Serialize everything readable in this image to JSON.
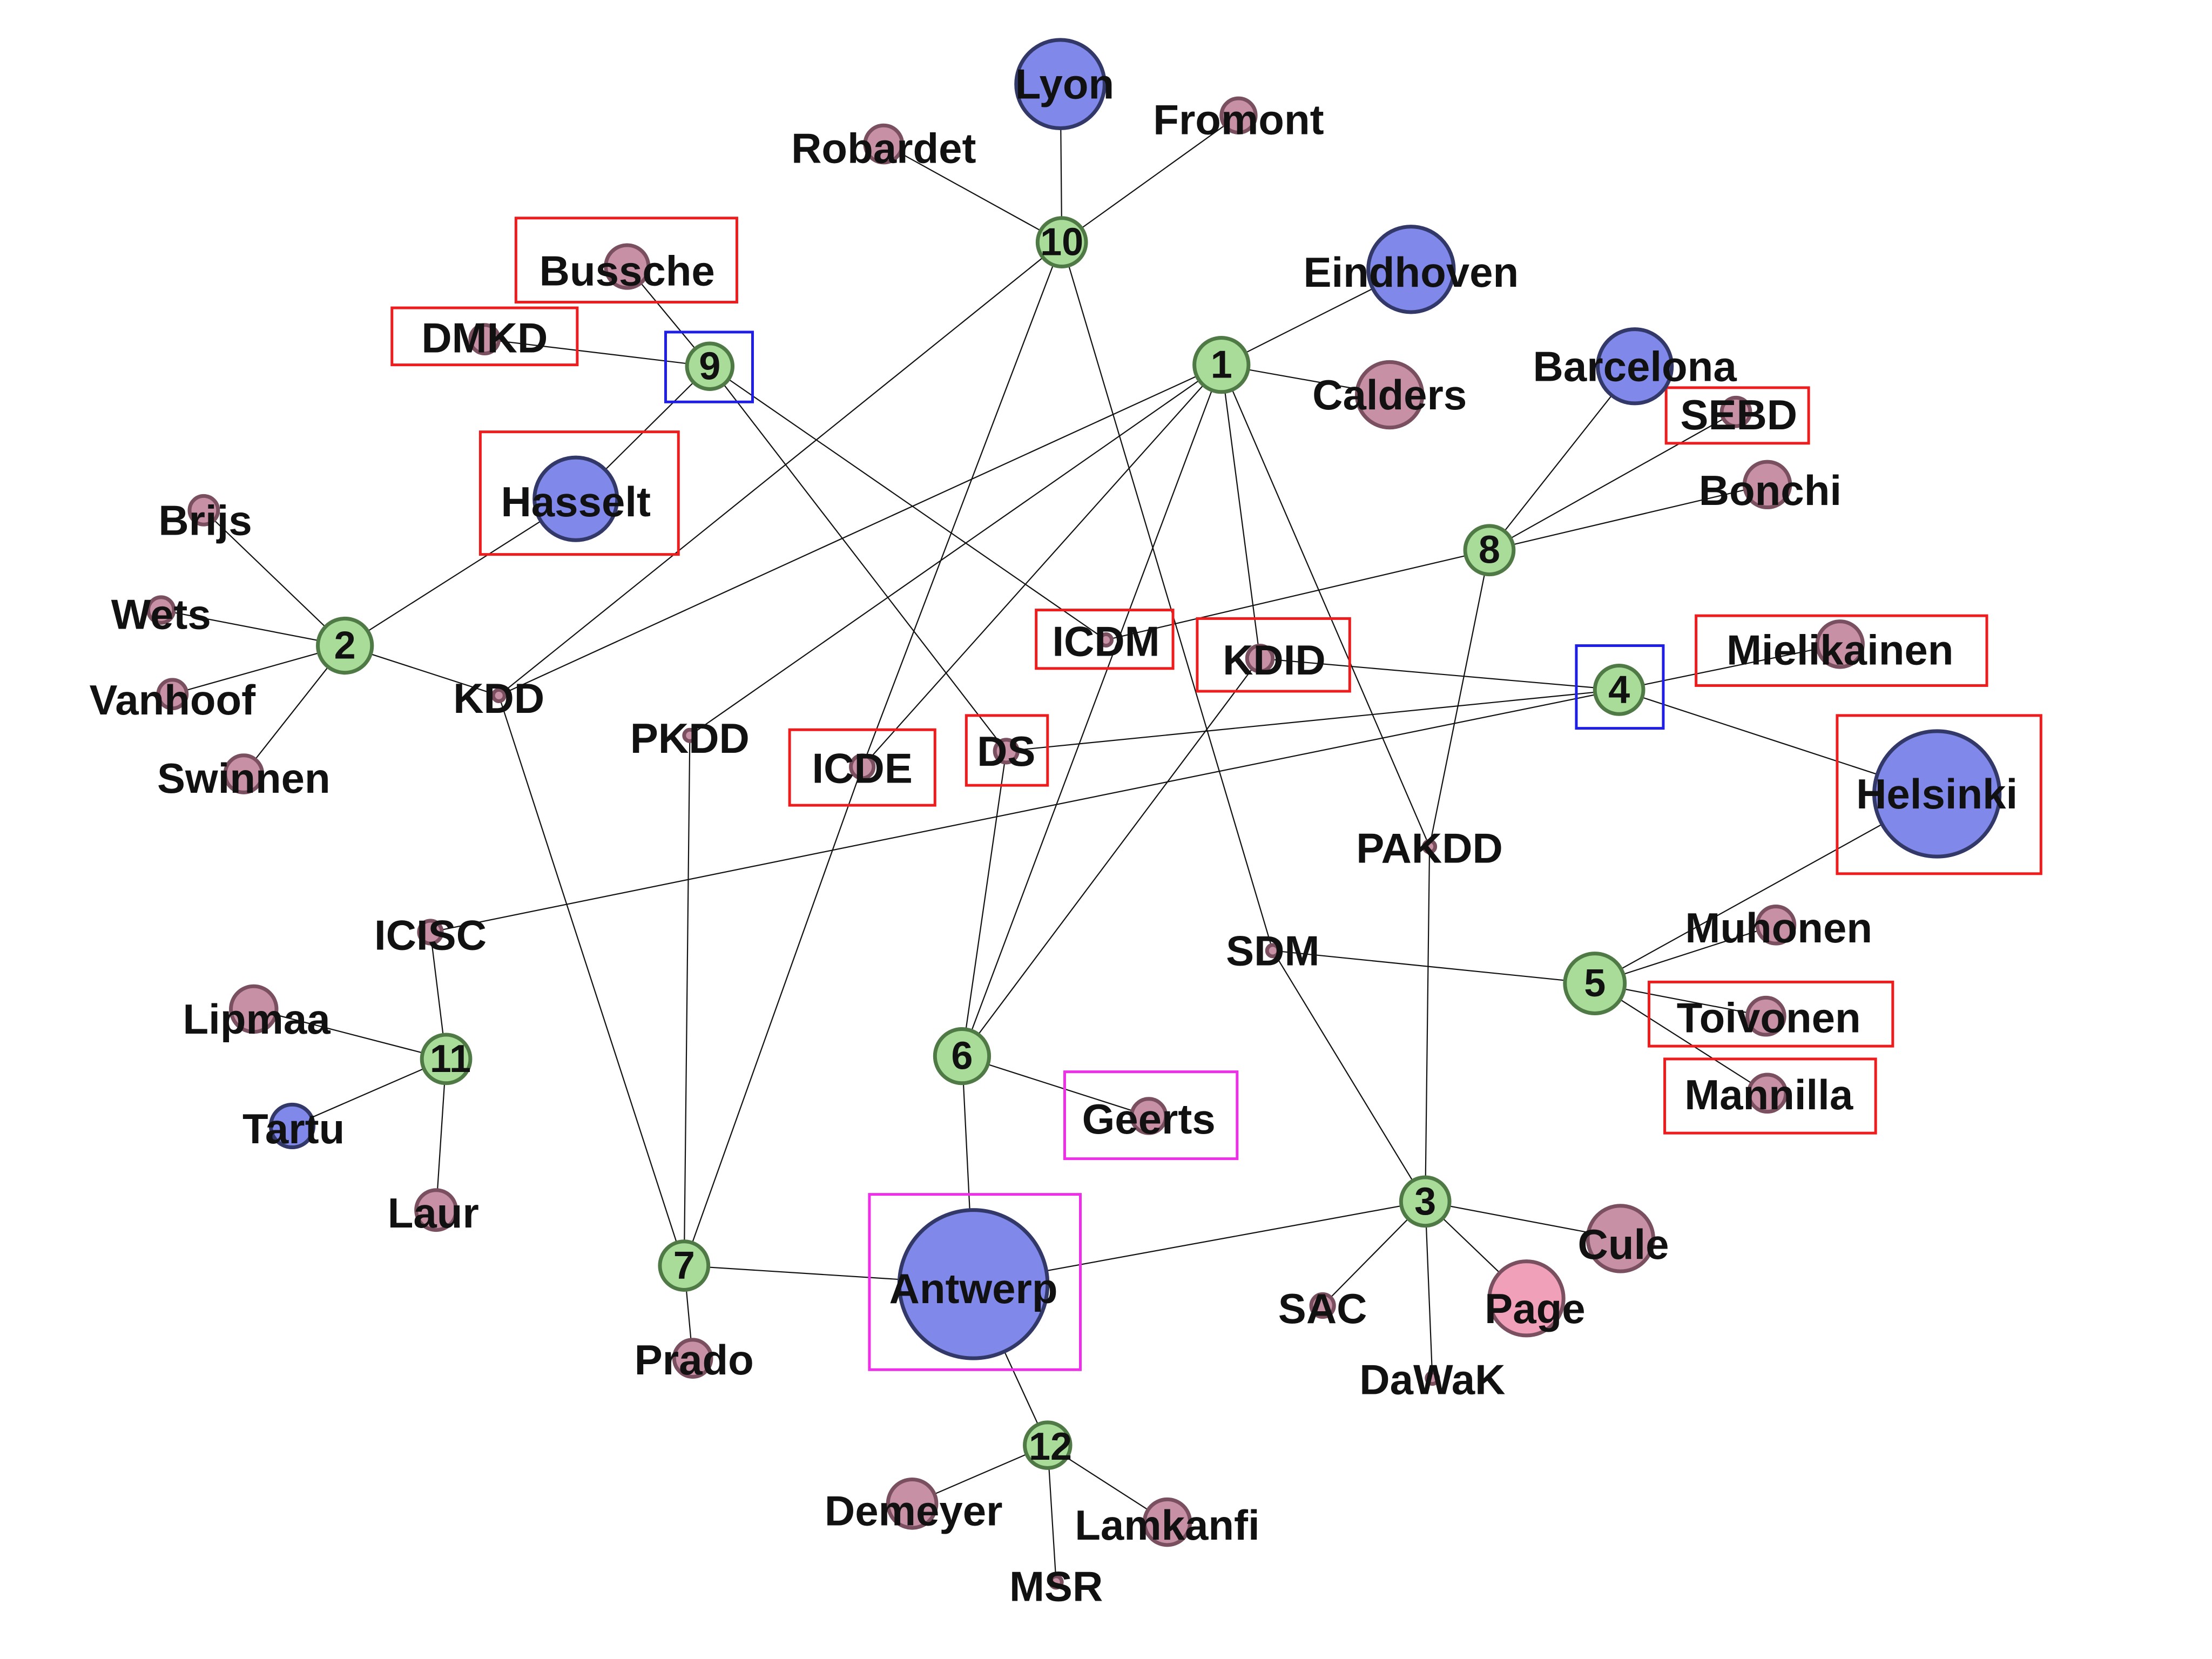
{
  "colors": {
    "number_node": "#a8dc98",
    "number_stroke": "#4f7a45",
    "person_node": "#c890a4",
    "person_stroke": "#7a5060",
    "page_node": "#f0a0b8",
    "city_node": "#8088ea",
    "city_stroke": "#323868",
    "box_red": "#ee1c1c",
    "box_blue": "#1e1ee6",
    "box_magenta": "#ee2ee8"
  },
  "nodes": [
    {
      "id": "n1",
      "label": "1",
      "kind": "number"
    },
    {
      "id": "n2",
      "label": "2",
      "kind": "number"
    },
    {
      "id": "n3",
      "label": "3",
      "kind": "number"
    },
    {
      "id": "n4",
      "label": "4",
      "kind": "number",
      "box": "blue"
    },
    {
      "id": "n5",
      "label": "5",
      "kind": "number"
    },
    {
      "id": "n6",
      "label": "6",
      "kind": "number"
    },
    {
      "id": "n7",
      "label": "7",
      "kind": "number"
    },
    {
      "id": "n8",
      "label": "8",
      "kind": "number"
    },
    {
      "id": "n9",
      "label": "9",
      "kind": "number",
      "box": "blue"
    },
    {
      "id": "n10",
      "label": "10",
      "kind": "number"
    },
    {
      "id": "n11",
      "label": "11",
      "kind": "number"
    },
    {
      "id": "n12",
      "label": "12",
      "kind": "number"
    },
    {
      "id": "lyon",
      "label": "Lyon",
      "kind": "city"
    },
    {
      "id": "eindhoven",
      "label": "Eindhoven",
      "kind": "city"
    },
    {
      "id": "barcelona",
      "label": "Barcelona",
      "kind": "city"
    },
    {
      "id": "hasselt",
      "label": "Hasselt",
      "kind": "city",
      "box": "red"
    },
    {
      "id": "helsinki",
      "label": "Helsinki",
      "kind": "city",
      "box": "red"
    },
    {
      "id": "antwerp",
      "label": "Antwerp",
      "kind": "city",
      "box": "magenta"
    },
    {
      "id": "tartu",
      "label": "Tartu",
      "kind": "city"
    },
    {
      "id": "robardet",
      "label": "Robardet",
      "kind": "person"
    },
    {
      "id": "fromont",
      "label": "Fromont",
      "kind": "person"
    },
    {
      "id": "bussche",
      "label": "Bussche",
      "kind": "person",
      "box": "red"
    },
    {
      "id": "dmkd",
      "label": "DMKD",
      "kind": "venue",
      "box": "red"
    },
    {
      "id": "calders",
      "label": "Calders",
      "kind": "person"
    },
    {
      "id": "sebd",
      "label": "SEBD",
      "kind": "venue",
      "box": "red"
    },
    {
      "id": "bonchi",
      "label": "Bonchi",
      "kind": "person"
    },
    {
      "id": "brijs",
      "label": "Brijs",
      "kind": "person"
    },
    {
      "id": "wets",
      "label": "Wets",
      "kind": "person"
    },
    {
      "id": "vanhoof",
      "label": "Vanhoof",
      "kind": "person"
    },
    {
      "id": "swinnen",
      "label": "Swinnen",
      "kind": "person"
    },
    {
      "id": "kdd",
      "label": "KDD",
      "kind": "venue"
    },
    {
      "id": "pkdd",
      "label": "PKDD",
      "kind": "venue"
    },
    {
      "id": "icde",
      "label": "ICDE",
      "kind": "venue",
      "box": "red"
    },
    {
      "id": "ds",
      "label": "DS",
      "kind": "venue",
      "box": "red"
    },
    {
      "id": "icdm",
      "label": "ICDM",
      "kind": "venue",
      "box": "red"
    },
    {
      "id": "kdid",
      "label": "KDID",
      "kind": "venue",
      "box": "red"
    },
    {
      "id": "mielikainen",
      "label": "Mielikainen",
      "kind": "person",
      "box": "red"
    },
    {
      "id": "pakdd",
      "label": "PAKDD",
      "kind": "venue"
    },
    {
      "id": "sdm",
      "label": "SDM",
      "kind": "venue"
    },
    {
      "id": "muhonen",
      "label": "Muhonen",
      "kind": "person"
    },
    {
      "id": "toivonen",
      "label": "Toivonen",
      "kind": "person",
      "box": "red"
    },
    {
      "id": "mannilla",
      "label": "Mannilla",
      "kind": "person",
      "box": "red"
    },
    {
      "id": "icisc",
      "label": "ICISC",
      "kind": "venue"
    },
    {
      "id": "lipmaa",
      "label": "Lipmaa",
      "kind": "person"
    },
    {
      "id": "laur",
      "label": "Laur",
      "kind": "person"
    },
    {
      "id": "geerts",
      "label": "Geerts",
      "kind": "person",
      "box": "magenta"
    },
    {
      "id": "prado",
      "label": "Prado",
      "kind": "person"
    },
    {
      "id": "sac",
      "label": "SAC",
      "kind": "venue"
    },
    {
      "id": "page",
      "label": "Page",
      "kind": "person_page"
    },
    {
      "id": "cule",
      "label": "Cule",
      "kind": "person"
    },
    {
      "id": "dawak",
      "label": "DaWaK",
      "kind": "venue"
    },
    {
      "id": "demeyer",
      "label": "Demeyer",
      "kind": "person"
    },
    {
      "id": "lamkanfi",
      "label": "Lamkanfi",
      "kind": "person"
    },
    {
      "id": "msr",
      "label": "MSR",
      "kind": "venue"
    }
  ],
  "edges": [
    [
      "n10",
      "lyon"
    ],
    [
      "n10",
      "robardet"
    ],
    [
      "n10",
      "fromont"
    ],
    [
      "n10",
      "kdd"
    ],
    [
      "n10",
      "icde"
    ],
    [
      "n10",
      "sdm"
    ],
    [
      "n9",
      "bussche"
    ],
    [
      "n9",
      "dmkd"
    ],
    [
      "n9",
      "hasselt"
    ],
    [
      "n9",
      "icdm"
    ],
    [
      "n9",
      "ds"
    ],
    [
      "n1",
      "eindhoven"
    ],
    [
      "n1",
      "calders"
    ],
    [
      "n1",
      "kdd"
    ],
    [
      "n1",
      "pkdd"
    ],
    [
      "n1",
      "icde"
    ],
    [
      "n1",
      "kdid"
    ],
    [
      "n1",
      "pakdd"
    ],
    [
      "n1",
      "n6"
    ],
    [
      "n8",
      "barcelona"
    ],
    [
      "n8",
      "sebd"
    ],
    [
      "n8",
      "bonchi"
    ],
    [
      "n8",
      "icdm"
    ],
    [
      "n8",
      "pakdd"
    ],
    [
      "n2",
      "brijs"
    ],
    [
      "n2",
      "wets"
    ],
    [
      "n2",
      "vanhoof"
    ],
    [
      "n2",
      "swinnen"
    ],
    [
      "n2",
      "hasselt"
    ],
    [
      "n2",
      "kdd"
    ],
    [
      "n4",
      "kdid"
    ],
    [
      "n4",
      "mielikainen"
    ],
    [
      "n4",
      "helsinki"
    ],
    [
      "n4",
      "ds"
    ],
    [
      "n4",
      "icisc"
    ],
    [
      "n5",
      "helsinki"
    ],
    [
      "n5",
      "muhonen"
    ],
    [
      "n5",
      "toivonen"
    ],
    [
      "n5",
      "mannilla"
    ],
    [
      "n5",
      "sdm"
    ],
    [
      "n11",
      "icisc"
    ],
    [
      "n11",
      "lipmaa"
    ],
    [
      "n11",
      "tartu"
    ],
    [
      "n11",
      "laur"
    ],
    [
      "n6",
      "ds"
    ],
    [
      "n6",
      "kdid"
    ],
    [
      "n6",
      "geerts"
    ],
    [
      "n6",
      "antwerp"
    ],
    [
      "n7",
      "kdd"
    ],
    [
      "n7",
      "pkdd"
    ],
    [
      "n7",
      "icde"
    ],
    [
      "n7",
      "prado"
    ],
    [
      "n7",
      "antwerp"
    ],
    [
      "n3",
      "antwerp"
    ],
    [
      "n3",
      "sdm"
    ],
    [
      "n3",
      "pakdd"
    ],
    [
      "n3",
      "sac"
    ],
    [
      "n3",
      "page"
    ],
    [
      "n3",
      "cule"
    ],
    [
      "n3",
      "dawak"
    ],
    [
      "n12",
      "antwerp"
    ],
    [
      "n12",
      "demeyer"
    ],
    [
      "n12",
      "lamkanfi"
    ],
    [
      "n12",
      "msr"
    ]
  ]
}
